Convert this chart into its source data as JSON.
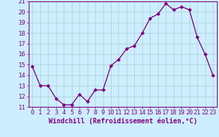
{
  "x": [
    0,
    1,
    2,
    3,
    4,
    5,
    6,
    7,
    8,
    9,
    10,
    11,
    12,
    13,
    14,
    15,
    16,
    17,
    18,
    19,
    20,
    21,
    22,
    23
  ],
  "y": [
    14.8,
    13.0,
    13.0,
    11.8,
    11.2,
    11.2,
    12.2,
    11.5,
    12.6,
    12.6,
    14.9,
    15.5,
    16.5,
    16.8,
    18.0,
    19.4,
    19.8,
    20.8,
    20.2,
    20.5,
    20.2,
    17.6,
    16.0,
    14.0
  ],
  "line_color": "#800080",
  "marker": "D",
  "marker_size": 2.5,
  "bg_color": "#cceeff",
  "grid_color": "#aacccc",
  "xlabel": "Windchill (Refroidissement éolien,°C)",
  "ylabel": "",
  "ylim": [
    11,
    21
  ],
  "xlim": [
    -0.5,
    23.5
  ],
  "yticks": [
    11,
    12,
    13,
    14,
    15,
    16,
    17,
    18,
    19,
    20,
    21
  ],
  "xticks": [
    0,
    1,
    2,
    3,
    4,
    5,
    6,
    7,
    8,
    9,
    10,
    11,
    12,
    13,
    14,
    15,
    16,
    17,
    18,
    19,
    20,
    21,
    22,
    23
  ],
  "tick_fontsize": 6.5,
  "xlabel_fontsize": 7,
  "line_width": 1.0,
  "spine_color": "#800080",
  "bottom_bar_color": "#800080"
}
